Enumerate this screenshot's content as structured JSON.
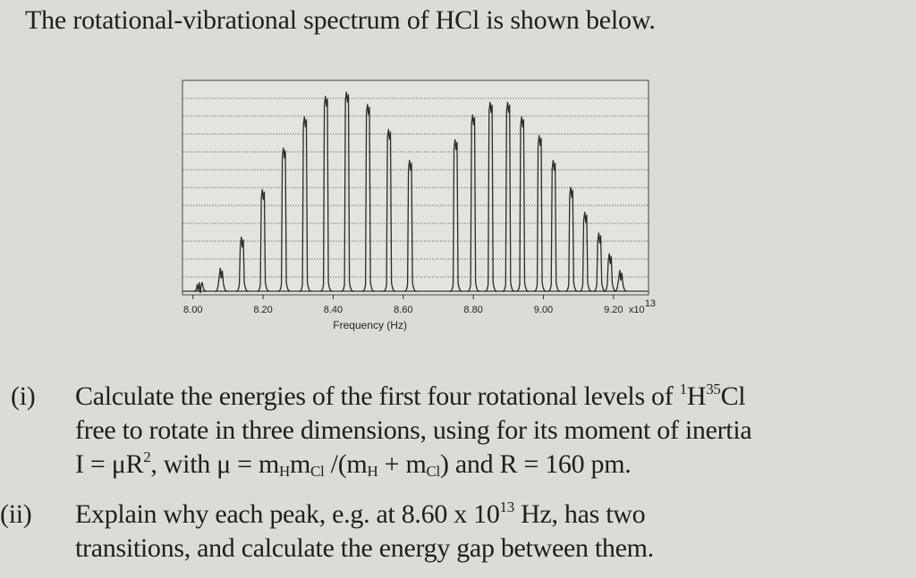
{
  "heading": "The rotational-vibrational spectrum of HCl is shown below.",
  "chart_data": {
    "type": "bar",
    "title": "",
    "xlabel": "Frequency (Hz)",
    "ylabel": "",
    "x_multiplier": "x10",
    "x_multiplier_exp": "13",
    "xlim": [
      7.97,
      9.3
    ],
    "ylim": [
      0,
      1
    ],
    "grid": true,
    "legend": "none",
    "x_ticks": [
      8.0,
      8.2,
      8.4,
      8.6,
      8.8,
      9.0,
      9.2
    ],
    "x_tick_labels": [
      "8.00",
      "8.20",
      "8.40",
      "8.60",
      "8.80",
      "9.00",
      "9.20"
    ],
    "series": [
      {
        "x": [
          8.02,
          8.08,
          8.14,
          8.2,
          8.26,
          8.32,
          8.38,
          8.44,
          8.5,
          8.56,
          8.62,
          8.75,
          8.8,
          8.85,
          8.9,
          8.94,
          8.99,
          9.03,
          9.08,
          9.12,
          9.16,
          9.19,
          9.22
        ],
        "values": [
          0.06,
          0.13,
          0.28,
          0.51,
          0.71,
          0.86,
          0.96,
          0.98,
          0.92,
          0.8,
          0.65,
          0.75,
          0.87,
          0.93,
          0.93,
          0.86,
          0.77,
          0.65,
          0.52,
          0.4,
          0.3,
          0.2,
          0.12
        ]
      }
    ]
  },
  "questions": [
    {
      "number": "(i)",
      "line1_a": "Calculate the energies of the first four rotational levels of ",
      "sup1": "1",
      "line1_b": "H",
      "sup2": "35",
      "line1_c": "Cl",
      "line2": "free to rotate in three dimensions, using for its moment of inertia",
      "line3_a": "I = μR",
      "sup3": "2",
      "line3_b": ", with μ = m",
      "sub1": "H",
      "line3_c": "m",
      "sub2": "Cl",
      "line3_d": " /(m",
      "sub3": "H",
      "line3_e": " + m",
      "sub4": "Cl",
      "line3_f": ") and R = 160 pm."
    },
    {
      "number": "(ii)",
      "line1_a": "Explain why each peak, e.g. at 8.60 x 10",
      "sup1": "13",
      "line1_b": " Hz, has two",
      "line2": "transitions, and calculate the energy gap between them."
    }
  ]
}
